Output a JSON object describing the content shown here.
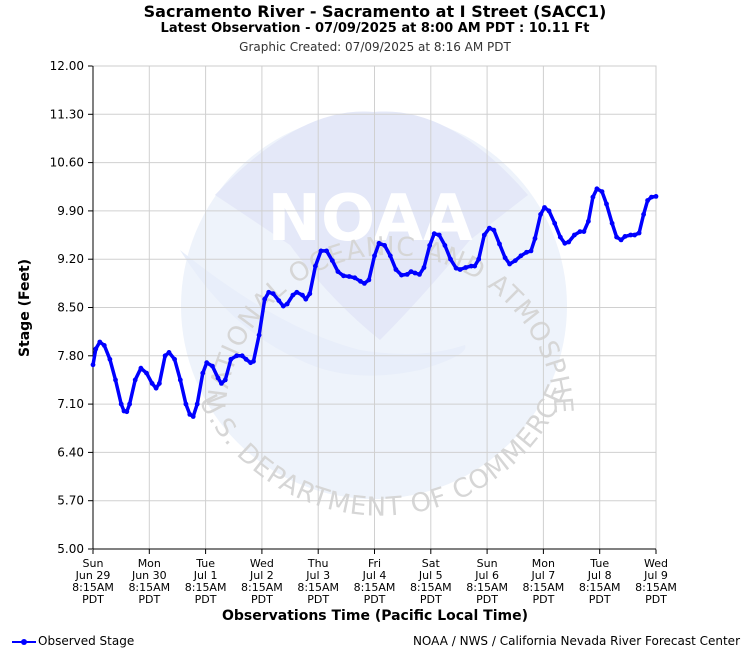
{
  "header": {
    "title": "Sacramento River - Sacramento at I Street (SACC1)",
    "subtitle": "Latest Observation - 07/09/2025 at 8:00 AM PDT : 10.11 Ft",
    "created": "Graphic Created: 07/09/2025 at 8:16 AM PDT"
  },
  "watermark": {
    "logo_text": "NOAA",
    "ring_top": "NATIONAL OCEANIC AND ATMOSPHERIC ADMINISTRATION",
    "ring_bottom": "U.S. DEPARTMENT OF COMMERCE"
  },
  "legend": {
    "label": "Observed Stage",
    "color": "#0000ff"
  },
  "credit": "NOAA / NWS / California Nevada River Forecast Center",
  "chart_data": {
    "type": "line",
    "title": "Sacramento River - Sacramento at I Street (SACC1)",
    "xlabel": "Observations Time (Pacific Local Time)",
    "ylabel": "Stage (Feet)",
    "ylim": [
      5.0,
      12.0
    ],
    "yticks": [
      "5.00",
      "5.70",
      "6.40",
      "7.10",
      "7.80",
      "8.50",
      "9.20",
      "9.90",
      "10.60",
      "11.30",
      "12.00"
    ],
    "xticks": [
      {
        "day": "Sun",
        "date": "Jun 29",
        "time": "8:15AM",
        "tz": "PDT"
      },
      {
        "day": "Mon",
        "date": "Jun 30",
        "time": "8:15AM",
        "tz": "PDT"
      },
      {
        "day": "Tue",
        "date": "Jul 1",
        "time": "8:15AM",
        "tz": "PDT"
      },
      {
        "day": "Wed",
        "date": "Jul 2",
        "time": "8:15AM",
        "tz": "PDT"
      },
      {
        "day": "Thu",
        "date": "Jul 3",
        "time": "8:15AM",
        "tz": "PDT"
      },
      {
        "day": "Fri",
        "date": "Jul 4",
        "time": "8:15AM",
        "tz": "PDT"
      },
      {
        "day": "Sat",
        "date": "Jul 5",
        "time": "8:15AM",
        "tz": "PDT"
      },
      {
        "day": "Sun",
        "date": "Jul 6",
        "time": "8:15AM",
        "tz": "PDT"
      },
      {
        "day": "Mon",
        "date": "Jul 7",
        "time": "8:15AM",
        "tz": "PDT"
      },
      {
        "day": "Tue",
        "date": "Jul 8",
        "time": "8:15AM",
        "tz": "PDT"
      },
      {
        "day": "Wed",
        "date": "Jul 9",
        "time": "8:15AM",
        "tz": "PDT"
      }
    ],
    "grid": true,
    "series": [
      {
        "name": "Observed Stage",
        "color": "#0000ff",
        "x_unit": "days since Sun Jun 29 8:15AM PDT",
        "points": [
          [
            0.0,
            7.67
          ],
          [
            0.05,
            7.9
          ],
          [
            0.12,
            8.0
          ],
          [
            0.2,
            7.95
          ],
          [
            0.3,
            7.75
          ],
          [
            0.4,
            7.45
          ],
          [
            0.5,
            7.1
          ],
          [
            0.55,
            7.0
          ],
          [
            0.6,
            6.99
          ],
          [
            0.65,
            7.1
          ],
          [
            0.75,
            7.45
          ],
          [
            0.85,
            7.62
          ],
          [
            0.95,
            7.55
          ],
          [
            1.05,
            7.4
          ],
          [
            1.12,
            7.33
          ],
          [
            1.18,
            7.4
          ],
          [
            1.28,
            7.8
          ],
          [
            1.35,
            7.85
          ],
          [
            1.45,
            7.75
          ],
          [
            1.55,
            7.45
          ],
          [
            1.65,
            7.1
          ],
          [
            1.72,
            6.95
          ],
          [
            1.78,
            6.92
          ],
          [
            1.85,
            7.1
          ],
          [
            1.95,
            7.55
          ],
          [
            2.02,
            7.7
          ],
          [
            2.12,
            7.65
          ],
          [
            2.22,
            7.48
          ],
          [
            2.28,
            7.4
          ],
          [
            2.35,
            7.45
          ],
          [
            2.45,
            7.75
          ],
          [
            2.55,
            7.8
          ],
          [
            2.65,
            7.8
          ],
          [
            2.72,
            7.75
          ],
          [
            2.8,
            7.7
          ],
          [
            2.85,
            7.72
          ],
          [
            2.95,
            8.1
          ],
          [
            3.05,
            8.62
          ],
          [
            3.12,
            8.72
          ],
          [
            3.2,
            8.7
          ],
          [
            3.3,
            8.6
          ],
          [
            3.38,
            8.52
          ],
          [
            3.45,
            8.55
          ],
          [
            3.55,
            8.68
          ],
          [
            3.62,
            8.72
          ],
          [
            3.72,
            8.68
          ],
          [
            3.78,
            8.62
          ],
          [
            3.85,
            8.7
          ],
          [
            3.95,
            9.1
          ],
          [
            4.05,
            9.32
          ],
          [
            4.15,
            9.32
          ],
          [
            4.25,
            9.18
          ],
          [
            4.35,
            9.02
          ],
          [
            4.45,
            8.96
          ],
          [
            4.55,
            8.95
          ],
          [
            4.65,
            8.93
          ],
          [
            4.75,
            8.88
          ],
          [
            4.82,
            8.85
          ],
          [
            4.9,
            8.9
          ],
          [
            5.0,
            9.25
          ],
          [
            5.08,
            9.43
          ],
          [
            5.18,
            9.4
          ],
          [
            5.28,
            9.25
          ],
          [
            5.38,
            9.05
          ],
          [
            5.48,
            8.97
          ],
          [
            5.58,
            8.98
          ],
          [
            5.65,
            9.02
          ],
          [
            5.72,
            9.0
          ],
          [
            5.8,
            8.98
          ],
          [
            5.88,
            9.08
          ],
          [
            5.98,
            9.4
          ],
          [
            6.06,
            9.57
          ],
          [
            6.15,
            9.55
          ],
          [
            6.25,
            9.4
          ],
          [
            6.35,
            9.2
          ],
          [
            6.45,
            9.07
          ],
          [
            6.52,
            9.05
          ],
          [
            6.62,
            9.08
          ],
          [
            6.72,
            9.1
          ],
          [
            6.78,
            9.1
          ],
          [
            6.85,
            9.2
          ],
          [
            6.95,
            9.55
          ],
          [
            7.04,
            9.65
          ],
          [
            7.12,
            9.62
          ],
          [
            7.22,
            9.42
          ],
          [
            7.32,
            9.22
          ],
          [
            7.4,
            9.13
          ],
          [
            7.5,
            9.18
          ],
          [
            7.6,
            9.25
          ],
          [
            7.7,
            9.3
          ],
          [
            7.78,
            9.32
          ],
          [
            7.85,
            9.5
          ],
          [
            7.95,
            9.85
          ],
          [
            8.02,
            9.95
          ],
          [
            8.1,
            9.9
          ],
          [
            8.2,
            9.72
          ],
          [
            8.3,
            9.52
          ],
          [
            8.38,
            9.43
          ],
          [
            8.45,
            9.45
          ],
          [
            8.55,
            9.55
          ],
          [
            8.65,
            9.6
          ],
          [
            8.72,
            9.6
          ],
          [
            8.8,
            9.75
          ],
          [
            8.88,
            10.1
          ],
          [
            8.95,
            10.22
          ],
          [
            9.04,
            10.18
          ],
          [
            9.12,
            10.0
          ],
          [
            9.22,
            9.72
          ],
          [
            9.3,
            9.52
          ],
          [
            9.38,
            9.48
          ],
          [
            9.45,
            9.53
          ],
          [
            9.55,
            9.55
          ],
          [
            9.62,
            9.55
          ],
          [
            9.7,
            9.58
          ],
          [
            9.78,
            9.85
          ],
          [
            9.85,
            10.05
          ],
          [
            9.92,
            10.1
          ],
          [
            10.0,
            10.11
          ]
        ]
      }
    ]
  }
}
